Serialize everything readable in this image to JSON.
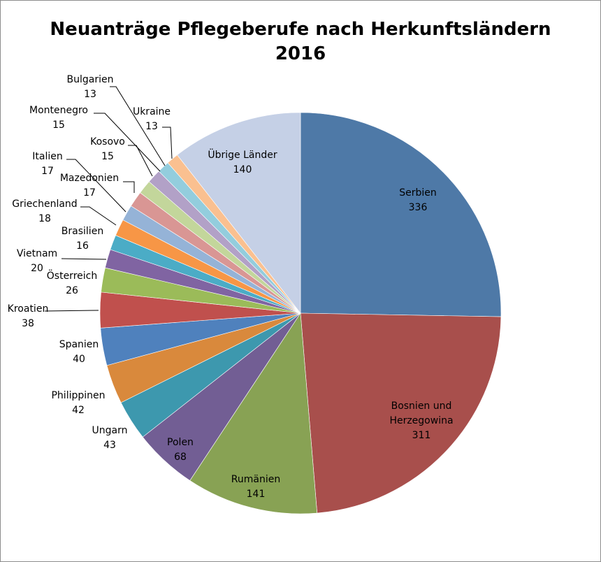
{
  "chart_data": {
    "type": "pie",
    "title": "Neuanträge Pflegeberufe nach Herkunftsländern",
    "subtitle": "2016",
    "legend": "none",
    "slices": [
      {
        "name": "Serbien",
        "value": 336,
        "color": "#4E79A7"
      },
      {
        "name": "Bosnien und Herzegowina",
        "label_lines": [
          "Bosnien und",
          "Herzegowina"
        ],
        "value": 311,
        "color": "#A84F4C"
      },
      {
        "name": "Rumänien",
        "value": 141,
        "color": "#88A254"
      },
      {
        "name": "Polen",
        "value": 68,
        "color": "#725E94"
      },
      {
        "name": "Ungarn",
        "value": 43,
        "color": "#3D98AE"
      },
      {
        "name": "Philippinen",
        "value": 42,
        "color": "#D9893C"
      },
      {
        "name": "Spanien",
        "value": 40,
        "color": "#4F81BD"
      },
      {
        "name": "Kroatien",
        "value": 38,
        "color": "#C0504D"
      },
      {
        "name": "Österreich",
        "value": 26,
        "color": "#9BBB59"
      },
      {
        "name": "Vietnam",
        "value": 20,
        "color": "#8064A2"
      },
      {
        "name": "Brasilien",
        "value": 16,
        "color": "#4BACC6"
      },
      {
        "name": "Griechenland",
        "value": 18,
        "color": "#F79646"
      },
      {
        "name": "Mazedonien",
        "value": 17,
        "color": "#95B3D7"
      },
      {
        "name": "Italien",
        "value": 17,
        "color": "#D99694"
      },
      {
        "name": "Kosovo",
        "value": 15,
        "color": "#C3D69B"
      },
      {
        "name": "Montenegro",
        "value": 15,
        "color": "#B2A1C7"
      },
      {
        "name": "Bulgarien",
        "value": 13,
        "color": "#93CDDD"
      },
      {
        "name": "Ukraine",
        "value": 13,
        "color": "#FAC090"
      },
      {
        "name": "Übrige Länder",
        "value": 140,
        "color": "#C5D0E6"
      }
    ]
  }
}
